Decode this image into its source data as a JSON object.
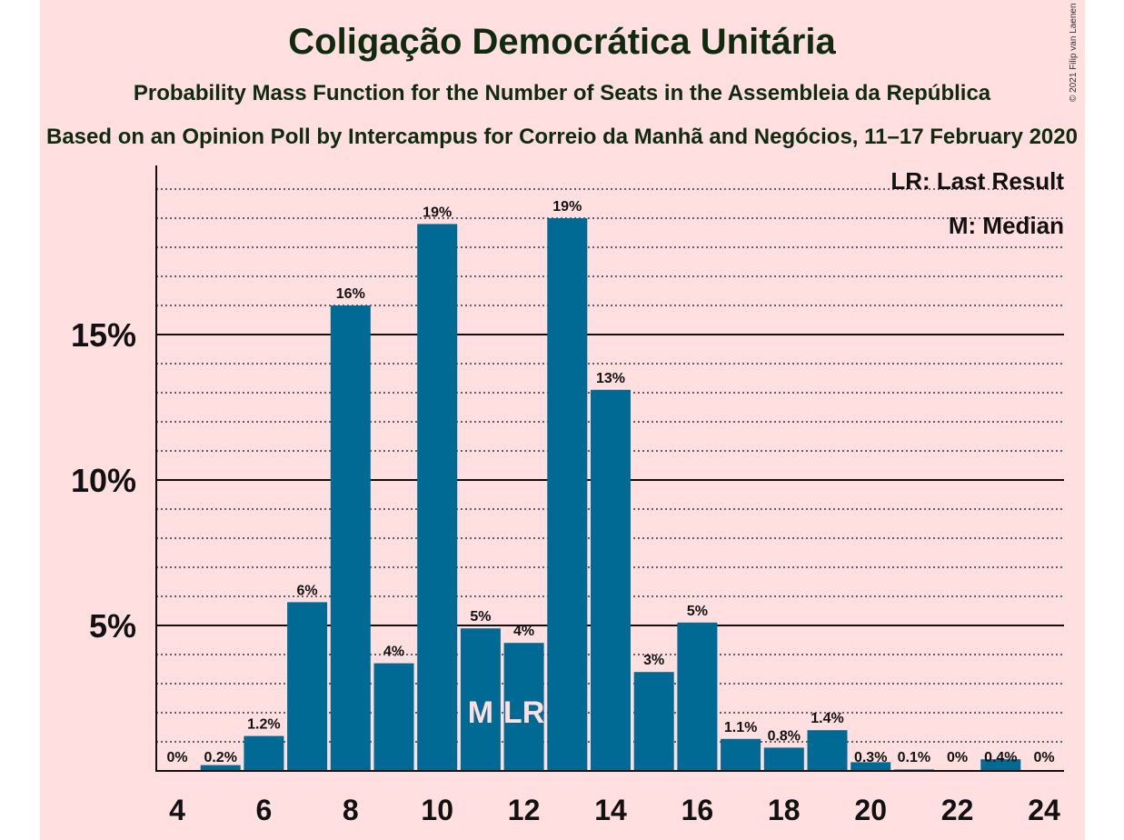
{
  "header": {
    "title": "Coligação Democrática Unitária",
    "subtitle": "Probability Mass Function for the Number of Seats in the Assembleia da República",
    "poll": "Based on an Opinion Poll by Intercampus for Correio da Manhã and Negócios, 11–17 February 2020",
    "copyright": "© 2021 Filip van Laenen"
  },
  "legend": {
    "last_result": "LR: Last Result",
    "median": "M: Median"
  },
  "colors": {
    "bar": "#006994",
    "background": "#ffdfdf",
    "text": "#111111"
  },
  "chart_data": {
    "type": "bar",
    "x": [
      4,
      5,
      6,
      7,
      8,
      9,
      10,
      11,
      12,
      13,
      14,
      15,
      16,
      17,
      18,
      19,
      20,
      21,
      22,
      23,
      24
    ],
    "values": [
      0,
      0.2,
      1.2,
      5.8,
      16.0,
      3.7,
      18.8,
      4.9,
      4.4,
      19.0,
      13.1,
      3.4,
      5.1,
      1.1,
      0.8,
      1.4,
      0.3,
      0.05,
      0,
      0.4,
      0
    ],
    "value_labels": [
      "0%",
      "0.2%",
      "1.2%",
      "6%",
      "16%",
      "4%",
      "19%",
      "5%",
      "4%",
      "19%",
      "13%",
      "3%",
      "5%",
      "1.1%",
      "0.8%",
      "1.4%",
      "0.3%",
      "0.1%",
      "0%",
      "0.4%",
      "0%"
    ],
    "x_ticks": [
      "4",
      "6",
      "8",
      "10",
      "12",
      "14",
      "16",
      "18",
      "20",
      "22",
      "24"
    ],
    "y_ticks": [
      "5%",
      "10%",
      "15%"
    ],
    "ylim": [
      0,
      20.5
    ],
    "major_gridlines": [
      5,
      10,
      15
    ],
    "minor_gridline_step": 1,
    "markers": [
      {
        "x": 11,
        "label": "M"
      },
      {
        "x": 12,
        "label": "LR"
      }
    ]
  }
}
